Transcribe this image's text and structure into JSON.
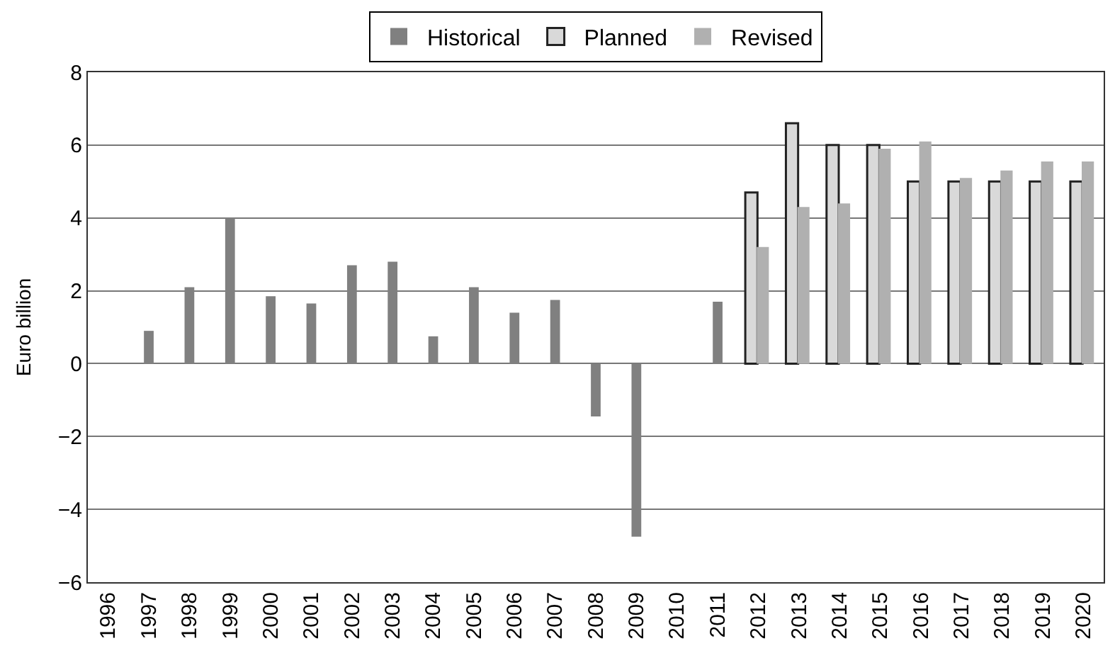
{
  "chart_data": {
    "type": "bar",
    "ylabel": "Euro billion",
    "categories": [
      "1996",
      "1997",
      "1998",
      "1999",
      "2000",
      "2001",
      "2002",
      "2003",
      "2004",
      "2005",
      "2006",
      "2007",
      "2008",
      "2009",
      "2010",
      "2011",
      "2012",
      "2013",
      "2014",
      "2015",
      "2016",
      "2017",
      "2018",
      "2019",
      "2020"
    ],
    "series": [
      {
        "name": "Historical",
        "color": "#808080",
        "values": [
          null,
          0.9,
          2.1,
          4.0,
          1.85,
          1.65,
          2.7,
          2.8,
          0.75,
          2.1,
          1.4,
          1.75,
          -1.45,
          -4.75,
          null,
          1.7,
          null,
          null,
          null,
          null,
          null,
          null,
          null,
          null,
          null
        ]
      },
      {
        "name": "Planned",
        "color": "#d9d9d9",
        "values": [
          null,
          null,
          null,
          null,
          null,
          null,
          null,
          null,
          null,
          null,
          null,
          null,
          null,
          null,
          null,
          null,
          4.7,
          6.6,
          6.0,
          6.0,
          5.0,
          5.0,
          5.0,
          5.0,
          5.0
        ]
      },
      {
        "name": "Revised",
        "color": "#b0b0b0",
        "values": [
          null,
          null,
          null,
          null,
          null,
          null,
          null,
          null,
          null,
          null,
          null,
          null,
          null,
          null,
          null,
          null,
          3.2,
          4.3,
          4.4,
          5.9,
          6.1,
          5.1,
          5.3,
          5.55,
          5.55
        ]
      }
    ],
    "ylim": [
      -6,
      8
    ],
    "yticks": [
      -6,
      -4,
      -2,
      0,
      2,
      4,
      6,
      8
    ],
    "grid": "y",
    "legend": "top"
  }
}
